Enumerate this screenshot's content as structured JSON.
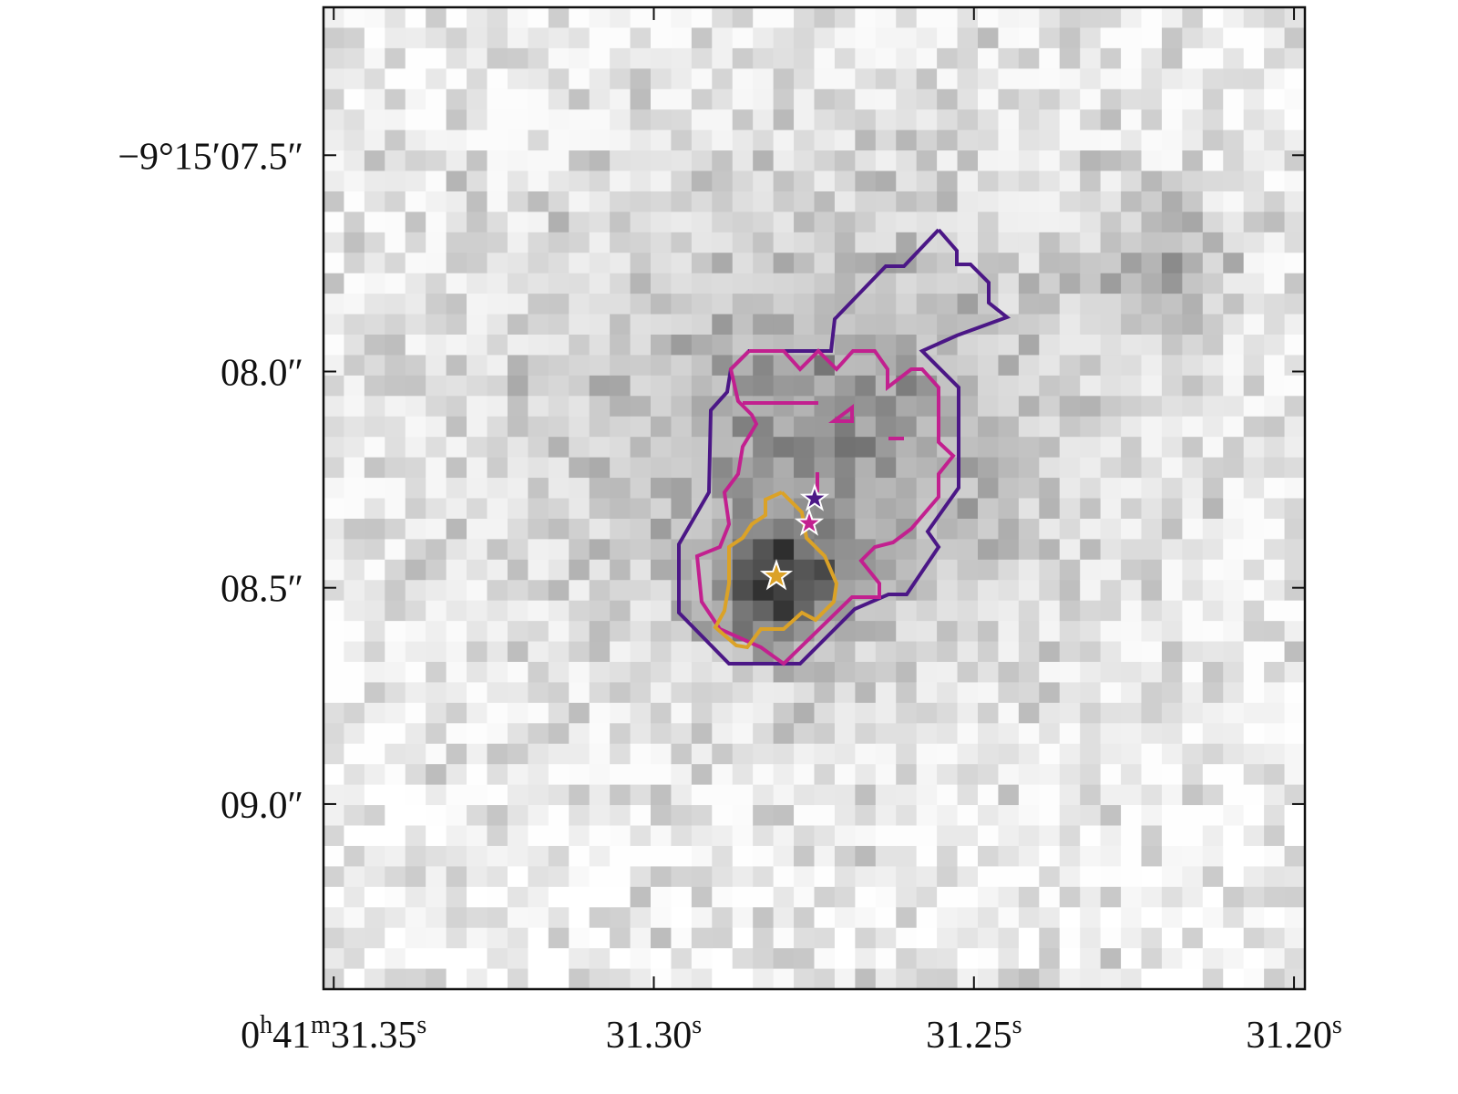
{
  "chart_data": {
    "type": "image",
    "xlim": [
      31.3516,
      31.1983
    ],
    "ylim": [
      9.428,
      7.158
    ],
    "xticks": [
      {
        "value": 31.35,
        "label": "0h41m31.35s"
      },
      {
        "value": 31.3,
        "label": "31.30s"
      },
      {
        "value": 31.25,
        "label": "31.25s"
      },
      {
        "value": 31.2,
        "label": "31.20s"
      }
    ],
    "yticks": [
      {
        "value": 7.5,
        "label": "−9°15′07.5″"
      },
      {
        "value": 8.0,
        "label": "08.0″"
      },
      {
        "value": 8.5,
        "label": "08.5″"
      },
      {
        "value": 9.0,
        "label": "09.0″"
      }
    ]
  }
}
